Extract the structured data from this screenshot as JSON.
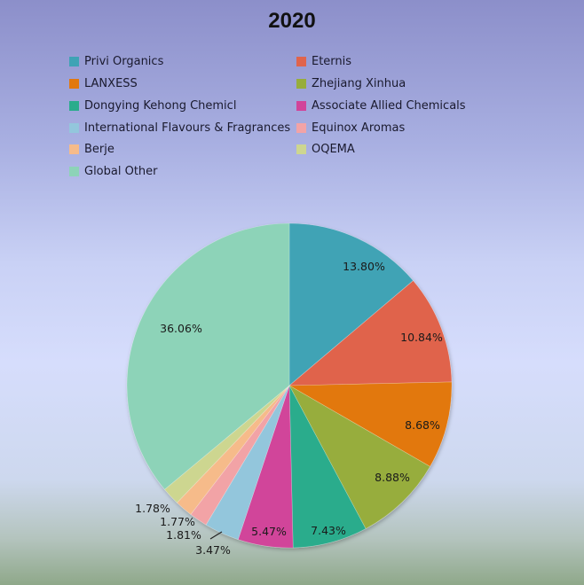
{
  "chart_data": {
    "type": "pie",
    "title": "2020",
    "legend_position": "top",
    "categories": [
      "Privi Organics",
      "Eternis",
      "LANXESS",
      "Zhejiang Xinhua",
      "Dongying Kehong Chemicl",
      "Associate Allied Chemicals",
      "International Flavours & Fragrances",
      "Equinox Aromas",
      "Berje",
      "OQEMA",
      "Global Other"
    ],
    "values": [
      13.8,
      10.84,
      8.68,
      8.88,
      7.43,
      5.47,
      3.47,
      1.81,
      1.77,
      1.78,
      36.06
    ],
    "labels": [
      "13.80%",
      "10.84%",
      "8.68%",
      "8.88%",
      "7.43%",
      "5.47%",
      "3.47%",
      "1.81%",
      "1.77%",
      "1.78%",
      "36.06%"
    ],
    "colors": [
      "#3fa3b5",
      "#e0644c",
      "#e2780f",
      "#97ad3c",
      "#2aac8c",
      "#d1449a",
      "#93c6dc",
      "#f2a3a6",
      "#f6bb8a",
      "#cdd690",
      "#8dd3b8"
    ],
    "unit": "%"
  },
  "title": "2020",
  "legend": [
    {
      "label": "Privi Organics",
      "color": "#3fa3b5"
    },
    {
      "label": "Eternis",
      "color": "#e0644c"
    },
    {
      "label": "LANXESS",
      "color": "#e2780f"
    },
    {
      "label": "Zhejiang Xinhua",
      "color": "#97ad3c"
    },
    {
      "label": "Dongying Kehong Chemicl",
      "color": "#2aac8c"
    },
    {
      "label": "Associate Allied Chemicals",
      "color": "#d1449a"
    },
    {
      "label": "International Flavours & Fragrances",
      "color": "#93c6dc"
    },
    {
      "label": "Equinox Aromas",
      "color": "#f2a3a6"
    },
    {
      "label": "Berje",
      "color": "#f6bb8a"
    },
    {
      "label": "OQEMA",
      "color": "#cdd690"
    },
    {
      "label": "Global Other",
      "color": "#8dd3b8"
    }
  ]
}
